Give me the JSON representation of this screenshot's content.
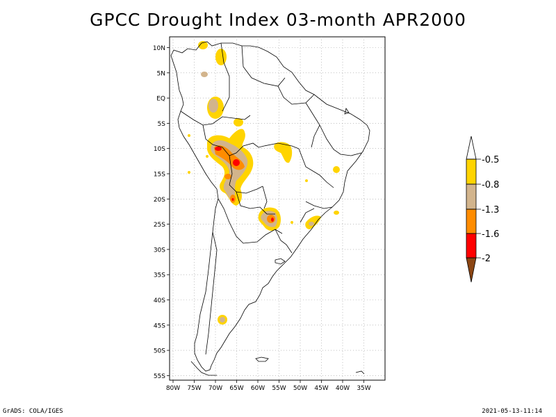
{
  "title": "GPCC Drought Index 03-month APR2000",
  "footer": {
    "left": "GrADS: COLA/IGES",
    "right": "2021-05-13-11:14"
  },
  "map": {
    "region": "South America",
    "lat_labels": [
      "10N",
      "5N",
      "EQ",
      "5S",
      "10S",
      "15S",
      "20S",
      "25S",
      "30S",
      "35S",
      "40S",
      "45S",
      "50S",
      "55S"
    ],
    "lon_labels": [
      "80W",
      "75W",
      "70W",
      "65W",
      "60W",
      "55W",
      "50W",
      "45W",
      "40W",
      "35W"
    ],
    "grid": true,
    "grid_style": "dotted"
  },
  "colorbar": {
    "labels": [
      "-0.5",
      "-0.8",
      "-1.3",
      "-1.6",
      "-2"
    ],
    "colors": [
      "#ffffff",
      "#ffd400",
      "#d2b48c",
      "#ff8c00",
      "#ff0000",
      "#8b4513"
    ]
  },
  "colors": {
    "level_0_5": "#ffd400",
    "level_0_8": "#d2b48c",
    "level_1_3": "#ff8c00",
    "level_1_6": "#ff0000",
    "level_2": "#8b4513"
  }
}
